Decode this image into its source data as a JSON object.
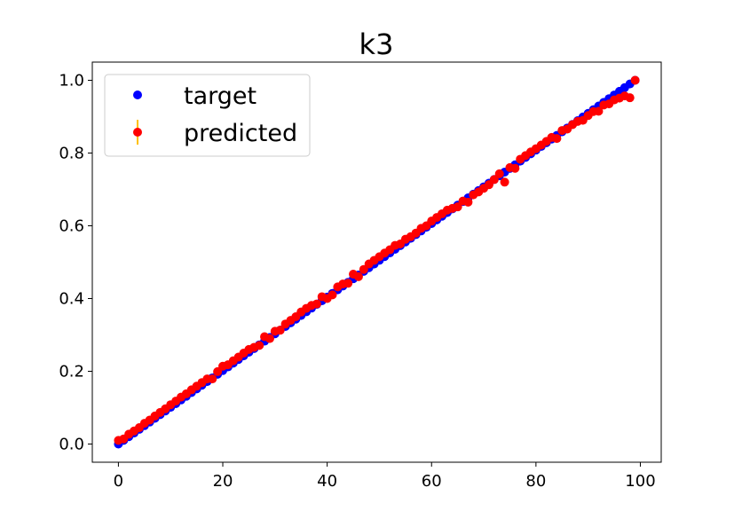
{
  "chart_data": {
    "type": "scatter",
    "title": "k3",
    "xlabel": "",
    "ylabel": "",
    "xlim": [
      -5,
      104
    ],
    "ylim": [
      -0.05,
      1.05
    ],
    "xticks": [
      0,
      20,
      40,
      60,
      80,
      100
    ],
    "xtick_labels": [
      "0",
      "20",
      "40",
      "60",
      "80",
      "100"
    ],
    "yticks": [
      0.0,
      0.2,
      0.4,
      0.6,
      0.8,
      1.0
    ],
    "ytick_labels": [
      "0.0",
      "0.2",
      "0.4",
      "0.6",
      "0.8",
      "1.0"
    ],
    "grid": false,
    "legend_position": "top-left",
    "series": [
      {
        "name": "target",
        "color": "#0000ff",
        "marker": "circle",
        "x": [
          0,
          1,
          2,
          3,
          4,
          5,
          6,
          7,
          8,
          9,
          10,
          11,
          12,
          13,
          14,
          15,
          16,
          17,
          18,
          19,
          20,
          21,
          22,
          23,
          24,
          25,
          26,
          27,
          28,
          29,
          30,
          31,
          32,
          33,
          34,
          35,
          36,
          37,
          38,
          39,
          40,
          41,
          42,
          43,
          44,
          45,
          46,
          47,
          48,
          49,
          50,
          51,
          52,
          53,
          54,
          55,
          56,
          57,
          58,
          59,
          60,
          61,
          62,
          63,
          64,
          65,
          66,
          67,
          68,
          69,
          70,
          71,
          72,
          73,
          74,
          75,
          76,
          77,
          78,
          79,
          80,
          81,
          82,
          83,
          84,
          85,
          86,
          87,
          88,
          89,
          90,
          91,
          92,
          93,
          94,
          95,
          96,
          97,
          98,
          99
        ],
        "y": [
          0.0,
          0.0101,
          0.0202,
          0.0303,
          0.0404,
          0.0505,
          0.0606,
          0.0707,
          0.0808,
          0.0909,
          0.101,
          0.1111,
          0.1212,
          0.1313,
          0.1414,
          0.1515,
          0.1616,
          0.1717,
          0.1818,
          0.1919,
          0.202,
          0.2121,
          0.2222,
          0.2323,
          0.2424,
          0.2525,
          0.2626,
          0.2727,
          0.2828,
          0.2929,
          0.303,
          0.3131,
          0.3232,
          0.3333,
          0.3434,
          0.3535,
          0.3636,
          0.3737,
          0.3838,
          0.3939,
          0.404,
          0.4141,
          0.4242,
          0.4343,
          0.4444,
          0.4545,
          0.4646,
          0.4747,
          0.4848,
          0.4949,
          0.5051,
          0.5152,
          0.5253,
          0.5354,
          0.5455,
          0.5556,
          0.5657,
          0.5758,
          0.5859,
          0.596,
          0.6061,
          0.6162,
          0.6263,
          0.6364,
          0.6465,
          0.6566,
          0.6667,
          0.6768,
          0.6869,
          0.697,
          0.7071,
          0.7172,
          0.7273,
          0.7374,
          0.7475,
          0.7576,
          0.7677,
          0.7778,
          0.7879,
          0.798,
          0.8081,
          0.8182,
          0.8283,
          0.8384,
          0.8485,
          0.8586,
          0.8687,
          0.8788,
          0.8889,
          0.899,
          0.9091,
          0.9192,
          0.9293,
          0.9394,
          0.9495,
          0.9596,
          0.9697,
          0.9798,
          0.9899,
          1.0
        ]
      },
      {
        "name": "predicted",
        "color": "#ff0000",
        "errorbar_color": "#ffc000",
        "marker": "circle",
        "x": [
          0,
          1,
          2,
          3,
          4,
          5,
          6,
          7,
          8,
          9,
          10,
          11,
          12,
          13,
          14,
          15,
          16,
          17,
          18,
          19,
          20,
          21,
          22,
          23,
          24,
          25,
          26,
          27,
          28,
          29,
          30,
          31,
          32,
          33,
          34,
          35,
          36,
          37,
          38,
          39,
          40,
          41,
          42,
          43,
          44,
          45,
          46,
          47,
          48,
          49,
          50,
          51,
          52,
          53,
          54,
          55,
          56,
          57,
          58,
          59,
          60,
          61,
          62,
          63,
          64,
          65,
          66,
          67,
          68,
          69,
          70,
          71,
          72,
          73,
          74,
          75,
          76,
          77,
          78,
          79,
          80,
          81,
          82,
          83,
          84,
          85,
          86,
          87,
          88,
          89,
          90,
          91,
          92,
          93,
          94,
          95,
          96,
          97,
          98,
          99
        ],
        "y": [
          0.01,
          0.014,
          0.027,
          0.036,
          0.045,
          0.057,
          0.066,
          0.077,
          0.087,
          0.097,
          0.108,
          0.118,
          0.129,
          0.138,
          0.149,
          0.159,
          0.169,
          0.179,
          0.179,
          0.199,
          0.214,
          0.218,
          0.229,
          0.239,
          0.25,
          0.26,
          0.266,
          0.271,
          0.295,
          0.29,
          0.31,
          0.313,
          0.33,
          0.34,
          0.35,
          0.363,
          0.373,
          0.381,
          0.385,
          0.405,
          0.4,
          0.41,
          0.432,
          0.44,
          0.442,
          0.467,
          0.46,
          0.48,
          0.495,
          0.505,
          0.515,
          0.525,
          0.534,
          0.546,
          0.55,
          0.563,
          0.57,
          0.58,
          0.593,
          0.6,
          0.613,
          0.623,
          0.633,
          0.643,
          0.648,
          0.652,
          0.668,
          0.665,
          0.685,
          0.693,
          0.703,
          0.713,
          0.727,
          0.743,
          0.72,
          0.76,
          0.758,
          0.783,
          0.793,
          0.803,
          0.812,
          0.822,
          0.832,
          0.843,
          0.84,
          0.862,
          0.866,
          0.878,
          0.887,
          0.89,
          0.903,
          0.914,
          0.915,
          0.932,
          0.935,
          0.946,
          0.951,
          0.957,
          0.952,
          1.0
        ],
        "error": 0.0
      }
    ]
  }
}
